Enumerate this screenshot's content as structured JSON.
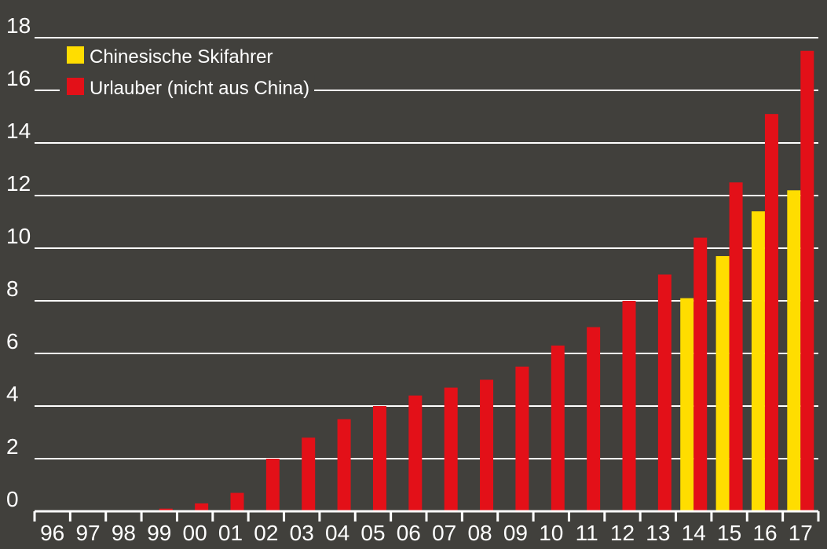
{
  "chart_data": {
    "type": "bar",
    "title": "",
    "xlabel": "",
    "ylabel": "",
    "categories": [
      "96",
      "97",
      "98",
      "99",
      "00",
      "01",
      "02",
      "03",
      "04",
      "05",
      "06",
      "07",
      "08",
      "09",
      "10",
      "11",
      "12",
      "13",
      "14",
      "15",
      "16",
      "17"
    ],
    "ylim": [
      0,
      18
    ],
    "yticks": [
      0,
      2,
      4,
      6,
      8,
      10,
      12,
      14,
      16,
      18
    ],
    "grid": true,
    "legend_position": "top-left",
    "series": [
      {
        "name": "Chinesische Skifahrer",
        "color": "#ffdd00",
        "values": [
          null,
          null,
          null,
          null,
          null,
          null,
          null,
          null,
          null,
          null,
          null,
          null,
          null,
          null,
          null,
          null,
          null,
          null,
          8.1,
          9.7,
          11.4,
          12.2
        ]
      },
      {
        "name": "Urlauber (nicht aus China)",
        "color": "#e31018",
        "values": [
          0,
          0,
          0,
          0.1,
          0.3,
          0.7,
          2.0,
          2.8,
          3.5,
          4.0,
          4.4,
          4.7,
          5.0,
          5.5,
          6.3,
          7.0,
          8.0,
          9.0,
          10.4,
          12.5,
          15.1,
          17.5
        ]
      }
    ]
  },
  "colors": {
    "background": "#41403c",
    "grid": "#ffffff",
    "text": "#ffffff"
  }
}
